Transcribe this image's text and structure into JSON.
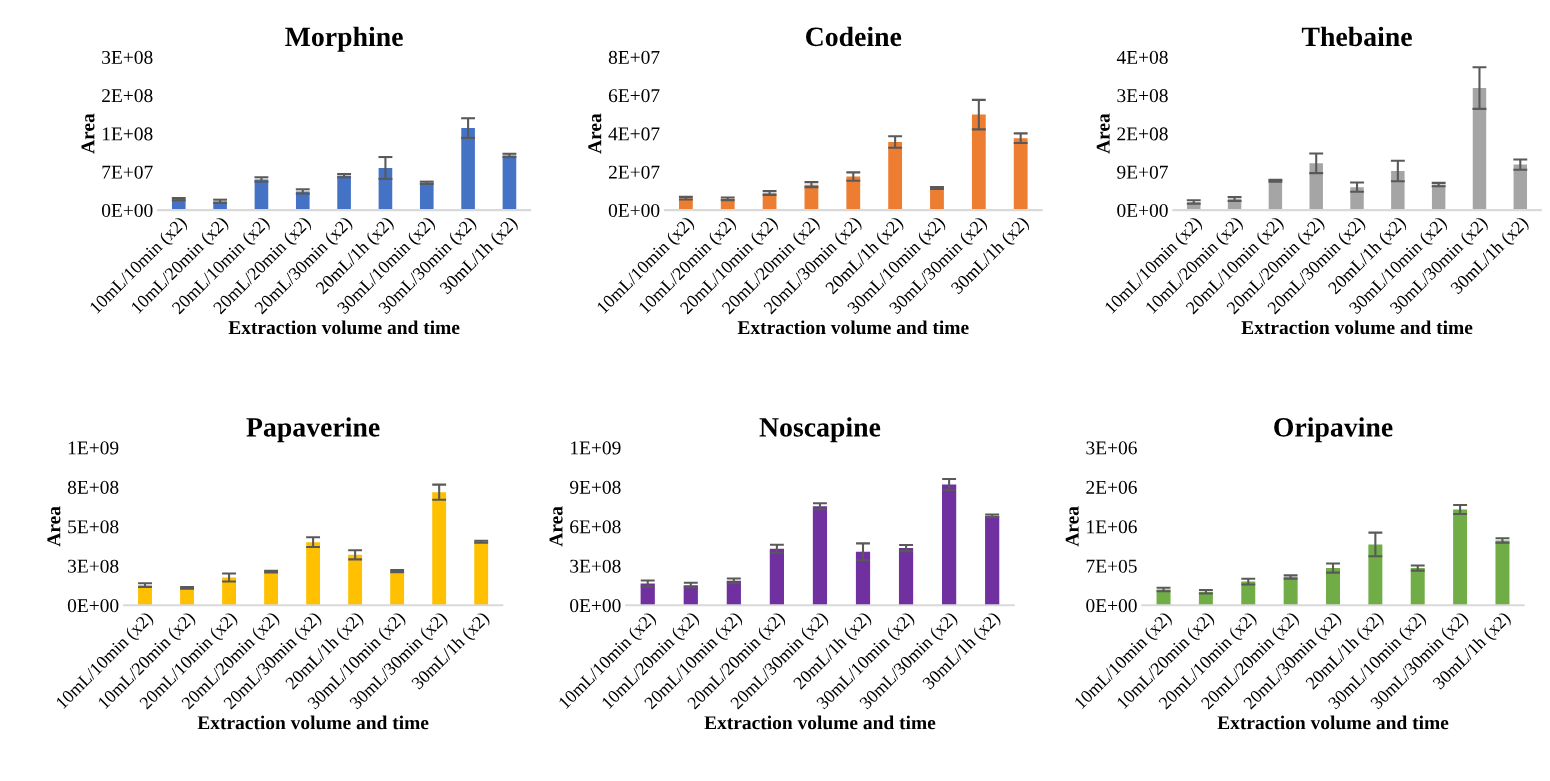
{
  "chart_data": [
    {
      "type": "bar",
      "title": "Morphine",
      "xlabel": "Extraction volume and time",
      "ylabel": "Area",
      "color": "#4472c4",
      "categories": [
        "10mL/10min (x2)",
        "10mL/20min (x2)",
        "20mL/10min (x2)",
        "20mL/20min (x2)",
        "20mL/30min (x2)",
        "20mL/1h (x2)",
        "30mL/10min (x2)",
        "30mL/30min (x2)",
        "30mL/1h (x2)"
      ],
      "values": [
        20000000.0,
        16000000.0,
        56000000.0,
        34000000.0,
        63000000.0,
        77000000.0,
        50000000.0,
        150000000.0,
        100000000.0
      ],
      "errors": [
        2000000.0,
        3000000.0,
        4000000.0,
        4000000.0,
        3000000.0,
        20000000.0,
        2000000.0,
        18000000.0,
        3000000.0
      ],
      "ylim": [
        0,
        280000000.0
      ],
      "yticks": [
        {
          "value": 0,
          "label": "0E+00"
        },
        {
          "value": 70000000.0,
          "label": "7E+07"
        },
        {
          "value": 140000000.0,
          "label": "1E+08"
        },
        {
          "value": 210000000.0,
          "label": "2E+08"
        },
        {
          "value": 280000000.0,
          "label": "3E+08"
        }
      ]
    },
    {
      "type": "bar",
      "title": "Codeine",
      "xlabel": "Extraction volume and time",
      "ylabel": "Area",
      "color": "#ed7d31",
      "categories": [
        "10mL/10min (x2)",
        "10mL/20min (x2)",
        "20mL/10min (x2)",
        "20mL/20min (x2)",
        "20mL/30min (x2)",
        "20mL/1h (x2)",
        "30mL/10min (x2)",
        "30mL/30min (x2)",
        "30mL/1h (x2)"
      ],
      "values": [
        6200000.0,
        5900000.0,
        8900000.0,
        13300000.0,
        17500000.0,
        35600000.0,
        11600000.0,
        49900000.0,
        37600000.0
      ],
      "errors": [
        700000.0,
        700000.0,
        1000000.0,
        1300000.0,
        2200000.0,
        3000000.0,
        500000.0,
        7700000.0,
        2500000.0
      ],
      "ylim": [
        0,
        80000000.0
      ],
      "yticks": [
        {
          "value": 0,
          "label": "0E+00"
        },
        {
          "value": 20000000.0,
          "label": "2E+07"
        },
        {
          "value": 40000000.0,
          "label": "4E+07"
        },
        {
          "value": 60000000.0,
          "label": "6E+07"
        },
        {
          "value": 80000000.0,
          "label": "8E+07"
        }
      ]
    },
    {
      "type": "bar",
      "title": "Thebaine",
      "xlabel": "Extraction volume and time",
      "ylabel": "Area",
      "color": "#a5a5a5",
      "categories": [
        "10mL/10min (x2)",
        "10mL/20min (x2)",
        "20mL/10min (x2)",
        "20mL/20min (x2)",
        "20mL/30min (x2)",
        "20mL/1h (x2)",
        "30mL/10min (x2)",
        "30mL/30min (x2)",
        "30mL/1h (x2)"
      ],
      "values": [
        19000000.0,
        26000000.0,
        69000000.0,
        110000000.0,
        54000000.0,
        92000000.0,
        60000000.0,
        287000000.0,
        107000000.0
      ],
      "errors": [
        4000000.0,
        4500000.0,
        2000000.0,
        23000000.0,
        11000000.0,
        24000000.0,
        4000000.0,
        49000000.0,
        12000000.0
      ],
      "ylim": [
        0,
        360000000.0
      ],
      "yticks": [
        {
          "value": 0,
          "label": "0E+00"
        },
        {
          "value": 90000000.0,
          "label": "9E+07"
        },
        {
          "value": 180000000.0,
          "label": "2E+08"
        },
        {
          "value": 270000000.0,
          "label": "3E+08"
        },
        {
          "value": 360000000.0,
          "label": "4E+08"
        }
      ]
    },
    {
      "type": "bar",
      "title": "Papaverine",
      "xlabel": "Extraction volume and time",
      "ylabel": "Area",
      "color": "#ffc000",
      "categories": [
        "10mL/10min (x2)",
        "10mL/20min (x2)",
        "20mL/10min (x2)",
        "20mL/20min (x2)",
        "20mL/30min (x2)",
        "20mL/1h (x2)",
        "30mL/10min (x2)",
        "30mL/30min (x2)",
        "30mL/1h (x2)"
      ],
      "values": [
        128000000.0,
        110000000.0,
        176000000.0,
        213000000.0,
        400000000.0,
        320000000.0,
        217000000.0,
        717000000.0,
        403000000.0
      ],
      "errors": [
        12000000.0,
        5000000.0,
        25000000.0,
        5000000.0,
        31000000.0,
        29000000.0,
        7000000.0,
        48000000.0,
        6000000.0
      ],
      "ylim": [
        0,
        1000000000.0
      ],
      "yticks": [
        {
          "value": 0,
          "label": "0E+00"
        },
        {
          "value": 250000000.0,
          "label": "3E+08"
        },
        {
          "value": 500000000.0,
          "label": "5E+08"
        },
        {
          "value": 750000000.0,
          "label": "8E+08"
        },
        {
          "value": 1000000000.0,
          "label": "1E+09"
        }
      ]
    },
    {
      "type": "bar",
      "title": "Noscapine",
      "xlabel": "Extraction volume and time",
      "ylabel": "Area",
      "color": "#7030a0",
      "categories": [
        "10mL/10min (x2)",
        "10mL/20min (x2)",
        "20mL/10min (x2)",
        "20mL/20min (x2)",
        "20mL/30min (x2)",
        "20mL/1h (x2)",
        "30mL/10min (x2)",
        "30mL/30min (x2)",
        "30mL/1h (x2)"
      ],
      "values": [
        165000000.0,
        153000000.0,
        186000000.0,
        430000000.0,
        753000000.0,
        407000000.0,
        435000000.0,
        918000000.0,
        681000000.0
      ],
      "errors": [
        23000000.0,
        18000000.0,
        18000000.0,
        30000000.0,
        23000000.0,
        64000000.0,
        23000000.0,
        43000000.0,
        10000000.0
      ],
      "ylim": [
        0,
        1200000000.0
      ],
      "yticks": [
        {
          "value": 0,
          "label": "0E+00"
        },
        {
          "value": 300000000.0,
          "label": "3E+08"
        },
        {
          "value": 600000000.0,
          "label": "6E+08"
        },
        {
          "value": 900000000.0,
          "label": "9E+08"
        },
        {
          "value": 1200000000.0,
          "label": "1E+09"
        }
      ]
    },
    {
      "type": "bar",
      "title": "Oripavine",
      "xlabel": "Extraction volume and time",
      "ylabel": "Area",
      "color": "#70ad47",
      "categories": [
        "10mL/10min (x2)",
        "10mL/20min (x2)",
        "20mL/10min (x2)",
        "20mL/20min (x2)",
        "20mL/30min (x2)",
        "20mL/1h (x2)",
        "30mL/10min (x2)",
        "30mL/30min (x2)",
        "30mL/1h (x2)"
      ],
      "values": [
        280000.0,
        240000.0,
        420000.0,
        500000.0,
        660000.0,
        1080000.0,
        660000.0,
        1700000.0,
        1150000.0
      ],
      "errors": [
        30000.0,
        30000.0,
        50000.0,
        30000.0,
        80000.0,
        210000.0,
        45000.0,
        80000.0,
        40000.0
      ],
      "ylim": [
        0,
        2800000.0
      ],
      "yticks": [
        {
          "value": 0,
          "label": "0E+00"
        },
        {
          "value": 700000.0,
          "label": "7E+05"
        },
        {
          "value": 1400000.0,
          "label": "1E+06"
        },
        {
          "value": 2100000.0,
          "label": "2E+06"
        },
        {
          "value": 2800000.0,
          "label": "3E+06"
        }
      ]
    }
  ]
}
